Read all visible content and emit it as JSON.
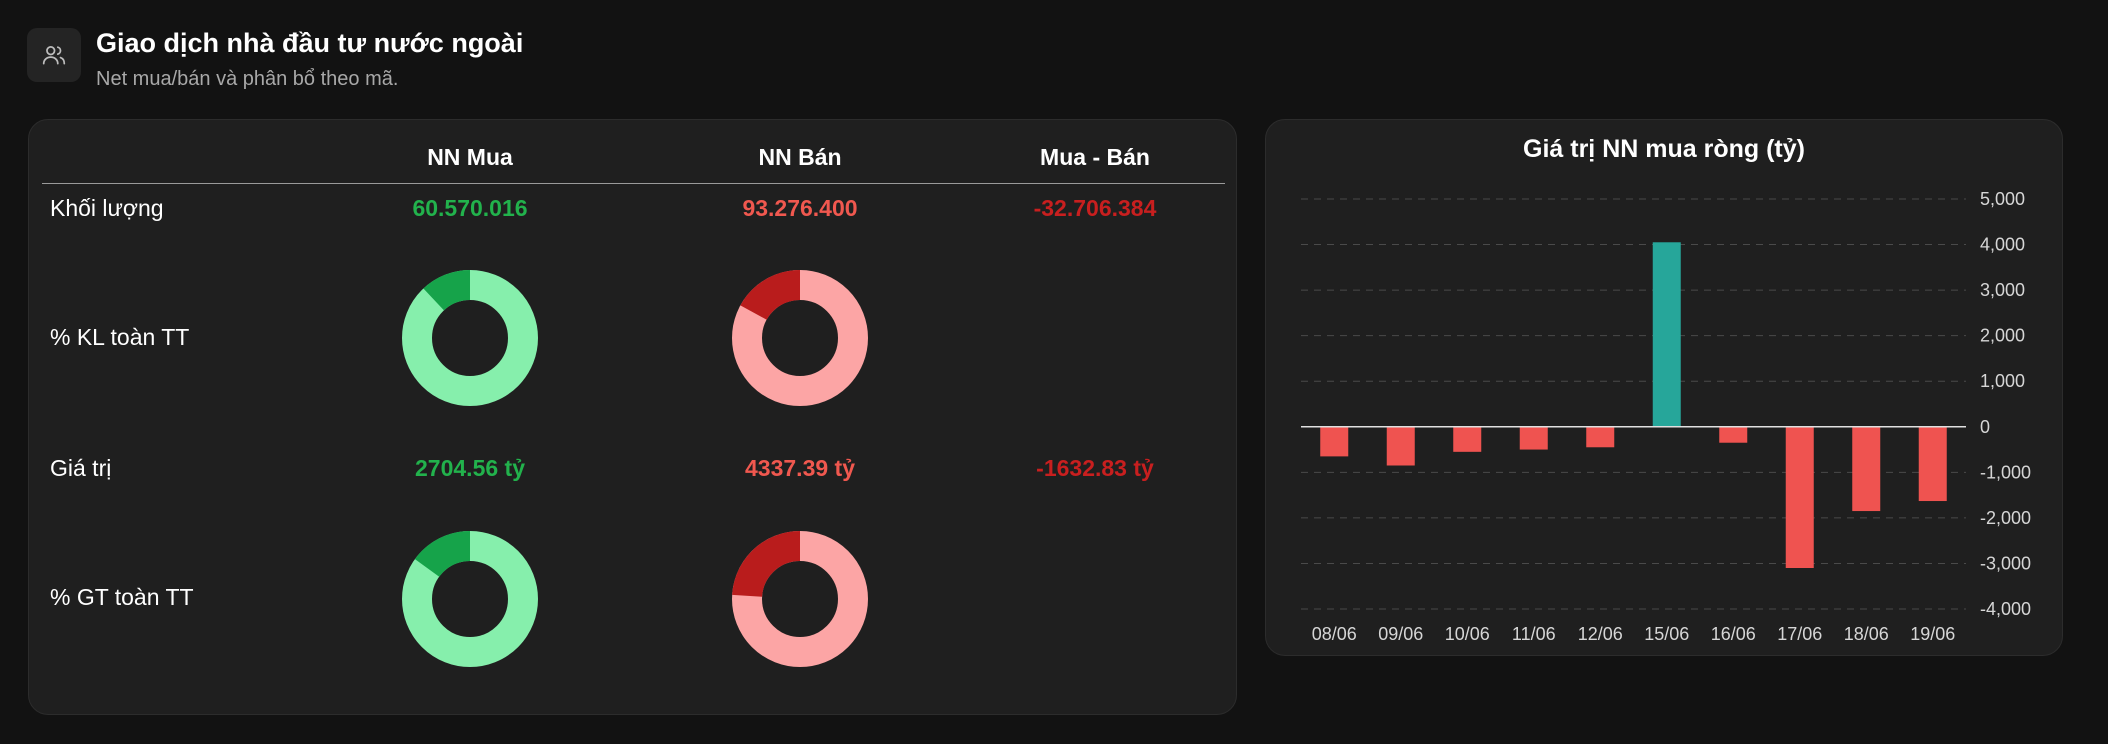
{
  "header": {
    "title": "Giao dịch nhà đầu tư nước ngoài",
    "subtitle": "Net mua/bán và phân bổ theo mã.",
    "icon": "users-icon"
  },
  "table": {
    "columns": [
      "NN Mua",
      "NN Bán",
      "Mua - Bán"
    ],
    "rows": {
      "volume": {
        "label": "Khối lượng",
        "buy": "60.570.016",
        "sell": "93.276.400",
        "net": "-32.706.384"
      },
      "volume_pct": {
        "label": "% KL toàn TT",
        "buy_share": 0.12,
        "sell_share": 0.17
      },
      "value": {
        "label": "Giá trị",
        "buy": "2704.56 tỷ",
        "sell": "4337.39 tỷ",
        "net": "-1632.83 tỷ"
      },
      "value_pct": {
        "label": "% GT toàn TT",
        "buy_share": 0.15,
        "sell_share": 0.24
      }
    }
  },
  "colors": {
    "buy_text": "#22b24c",
    "sell_text": "#f0584f",
    "net_text": "#c81f1f",
    "buy_donut_fg": "#16a34a",
    "buy_donut_bg": "#86efac",
    "sell_donut_fg": "#b91c1c",
    "sell_donut_bg": "#fca5a5",
    "bar_positive": "#26a69a",
    "bar_negative": "#ef5350"
  },
  "chart_data": {
    "type": "bar",
    "title": "Giá trị NN mua ròng (tỷ)",
    "categories": [
      "08/06",
      "09/06",
      "10/06",
      "11/06",
      "12/06",
      "15/06",
      "16/06",
      "17/06",
      "18/06",
      "19/06"
    ],
    "values": [
      -650,
      -850,
      -550,
      -500,
      -450,
      4050,
      -350,
      -3100,
      -1850,
      -1630
    ],
    "yticks": [
      "5,000",
      "4,000",
      "3,000",
      "2,000",
      "1,000",
      "0",
      "-1,000",
      "-2,000",
      "-3,000",
      "-4,000"
    ],
    "ylim": [
      -4000,
      5000
    ],
    "grid": true,
    "xlabel": "",
    "ylabel": ""
  }
}
